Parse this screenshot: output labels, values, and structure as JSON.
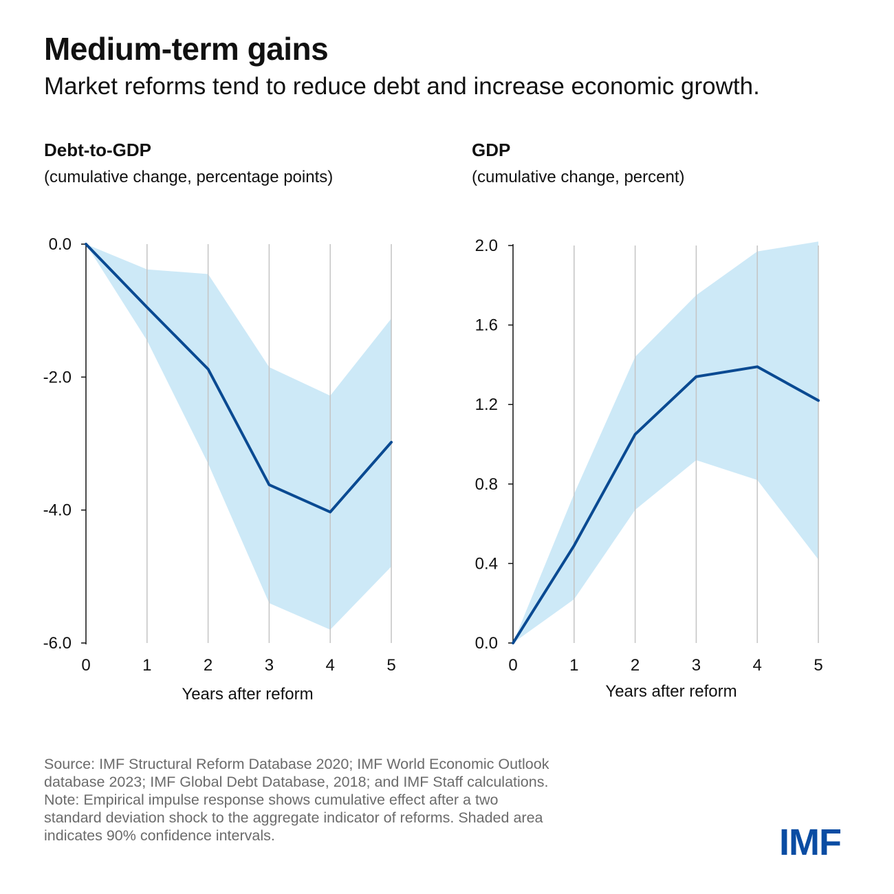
{
  "header": {
    "title": "Medium-term gains",
    "subtitle": "Market reforms tend to reduce debt and increase economic growth."
  },
  "colors": {
    "line": "#0a4a92",
    "band": "#cde9f7",
    "grid": "#c4c4c4",
    "axis": "#111111",
    "logo": "#0a4ca3"
  },
  "chart_data": [
    {
      "type": "line",
      "title": "Debt-to-GDP",
      "subtitle": "(cumulative change, percentage points)",
      "xlabel": "Years after reform",
      "x": [
        0,
        1,
        2,
        3,
        4,
        5
      ],
      "xticks": [
        "0",
        "1",
        "2",
        "3",
        "4",
        "5"
      ],
      "ylim": [
        -6.0,
        0.0
      ],
      "yticks": [
        0.0,
        -2.0,
        -4.0,
        -6.0
      ],
      "ytick_labels": [
        "0.0",
        "-2.0",
        "-4.0",
        "-6.0"
      ],
      "series": [
        {
          "values": [
            0.0,
            -0.95,
            -1.88,
            -3.62,
            -4.03,
            -2.98
          ]
        }
      ],
      "band": {
        "lower": [
          0.0,
          -1.45,
          -3.3,
          -5.4,
          -5.8,
          -4.85
        ],
        "upper": [
          0.0,
          -0.38,
          -0.45,
          -1.85,
          -2.28,
          -1.12
        ]
      },
      "grid": "vertical"
    },
    {
      "type": "line",
      "title": "GDP",
      "subtitle": "(cumulative change, percent)",
      "xlabel": "Years after reform",
      "x": [
        0,
        1,
        2,
        3,
        4,
        5
      ],
      "xticks": [
        "0",
        "1",
        "2",
        "3",
        "4",
        "5"
      ],
      "ylim": [
        0.0,
        2.0
      ],
      "yticks": [
        2.0,
        1.6,
        1.2,
        0.8,
        0.4,
        0.0
      ],
      "ytick_labels": [
        "2.0",
        "1.6",
        "1.2",
        "0.8",
        "0.4",
        "0.0"
      ],
      "series": [
        {
          "values": [
            0.0,
            0.49,
            1.05,
            1.34,
            1.39,
            1.22
          ]
        }
      ],
      "band": {
        "lower": [
          0.0,
          0.22,
          0.67,
          0.92,
          0.82,
          0.42
        ],
        "upper": [
          0.0,
          0.75,
          1.44,
          1.75,
          1.97,
          2.02
        ]
      },
      "grid": "vertical"
    }
  ],
  "footer": {
    "notes": [
      "Source: IMF Structural Reform Database 2020; IMF World Economic Outlook",
      "database 2023; IMF Global Debt Database, 2018; and IMF Staff calculations.",
      "Note: Empirical impulse response shows cumulative effect after a two",
      "standard deviation shock to the aggregate indicator of reforms. Shaded area",
      "indicates 90% confidence intervals."
    ],
    "logo_text": "IMF"
  }
}
